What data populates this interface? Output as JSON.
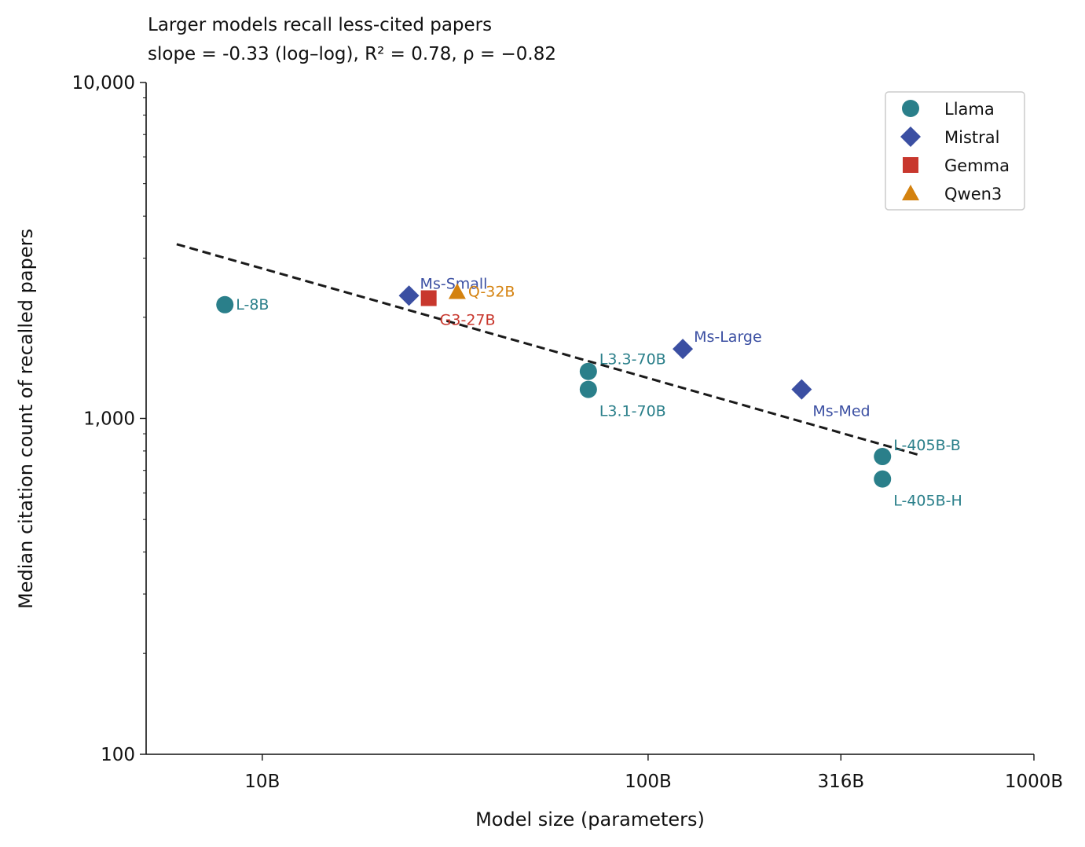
{
  "chart_data": {
    "type": "scatter",
    "title": "Larger models recall less-cited papers",
    "subtitle": "slope = -0.33 (log–log),  R² = 0.78,  ρ = −0.82",
    "xlabel": "Model size (parameters)",
    "ylabel": "Median citation count of recalled papers",
    "xscale": "log",
    "yscale": "log",
    "xlim": [
      5,
      1000
    ],
    "ylim": [
      100,
      10000
    ],
    "x_unit": "billion parameters",
    "x_ticks": [
      {
        "value": 10,
        "label": "10B"
      },
      {
        "value": 100,
        "label": "100B"
      },
      {
        "value": 316,
        "label": "316B"
      },
      {
        "value": 1000,
        "label": "1000B"
      }
    ],
    "y_ticks": [
      {
        "value": 100,
        "label": "100"
      },
      {
        "value": 1000,
        "label": "1,000"
      },
      {
        "value": 10000,
        "label": "10,000"
      }
    ],
    "grid": false,
    "legend_position": "top-right",
    "series": [
      {
        "name": "Llama",
        "marker": "circle",
        "color": "#2a7f8a",
        "points": [
          {
            "label": "L-8B",
            "x": 8,
            "y": 2180
          },
          {
            "label": "L3.3-70B",
            "x": 70,
            "y": 1380
          },
          {
            "label": "L3.1-70B",
            "x": 70,
            "y": 1220
          },
          {
            "label": "L-405B-B",
            "x": 405,
            "y": 770
          },
          {
            "label": "L-405B-H",
            "x": 405,
            "y": 660
          }
        ]
      },
      {
        "name": "Mistral",
        "marker": "diamond",
        "color": "#3b4fa2",
        "points": [
          {
            "label": "Ms-Small",
            "x": 24,
            "y": 2320
          },
          {
            "label": "Ms-Large",
            "x": 123,
            "y": 1610
          },
          {
            "label": "Ms-Med",
            "x": 250,
            "y": 1220
          }
        ]
      },
      {
        "name": "Gemma",
        "marker": "square",
        "color": "#c8372d",
        "points": [
          {
            "label": "G3-27B",
            "x": 27,
            "y": 2280
          }
        ]
      },
      {
        "name": "Qwen3",
        "marker": "triangle",
        "color": "#d4820f",
        "points": [
          {
            "label": "Q-32B",
            "x": 32,
            "y": 2380
          }
        ]
      }
    ],
    "fit_line": {
      "style": "dashed",
      "color": "#1a1a1a",
      "x": [
        6,
        500
      ],
      "y": [
        3300,
        780
      ]
    }
  }
}
